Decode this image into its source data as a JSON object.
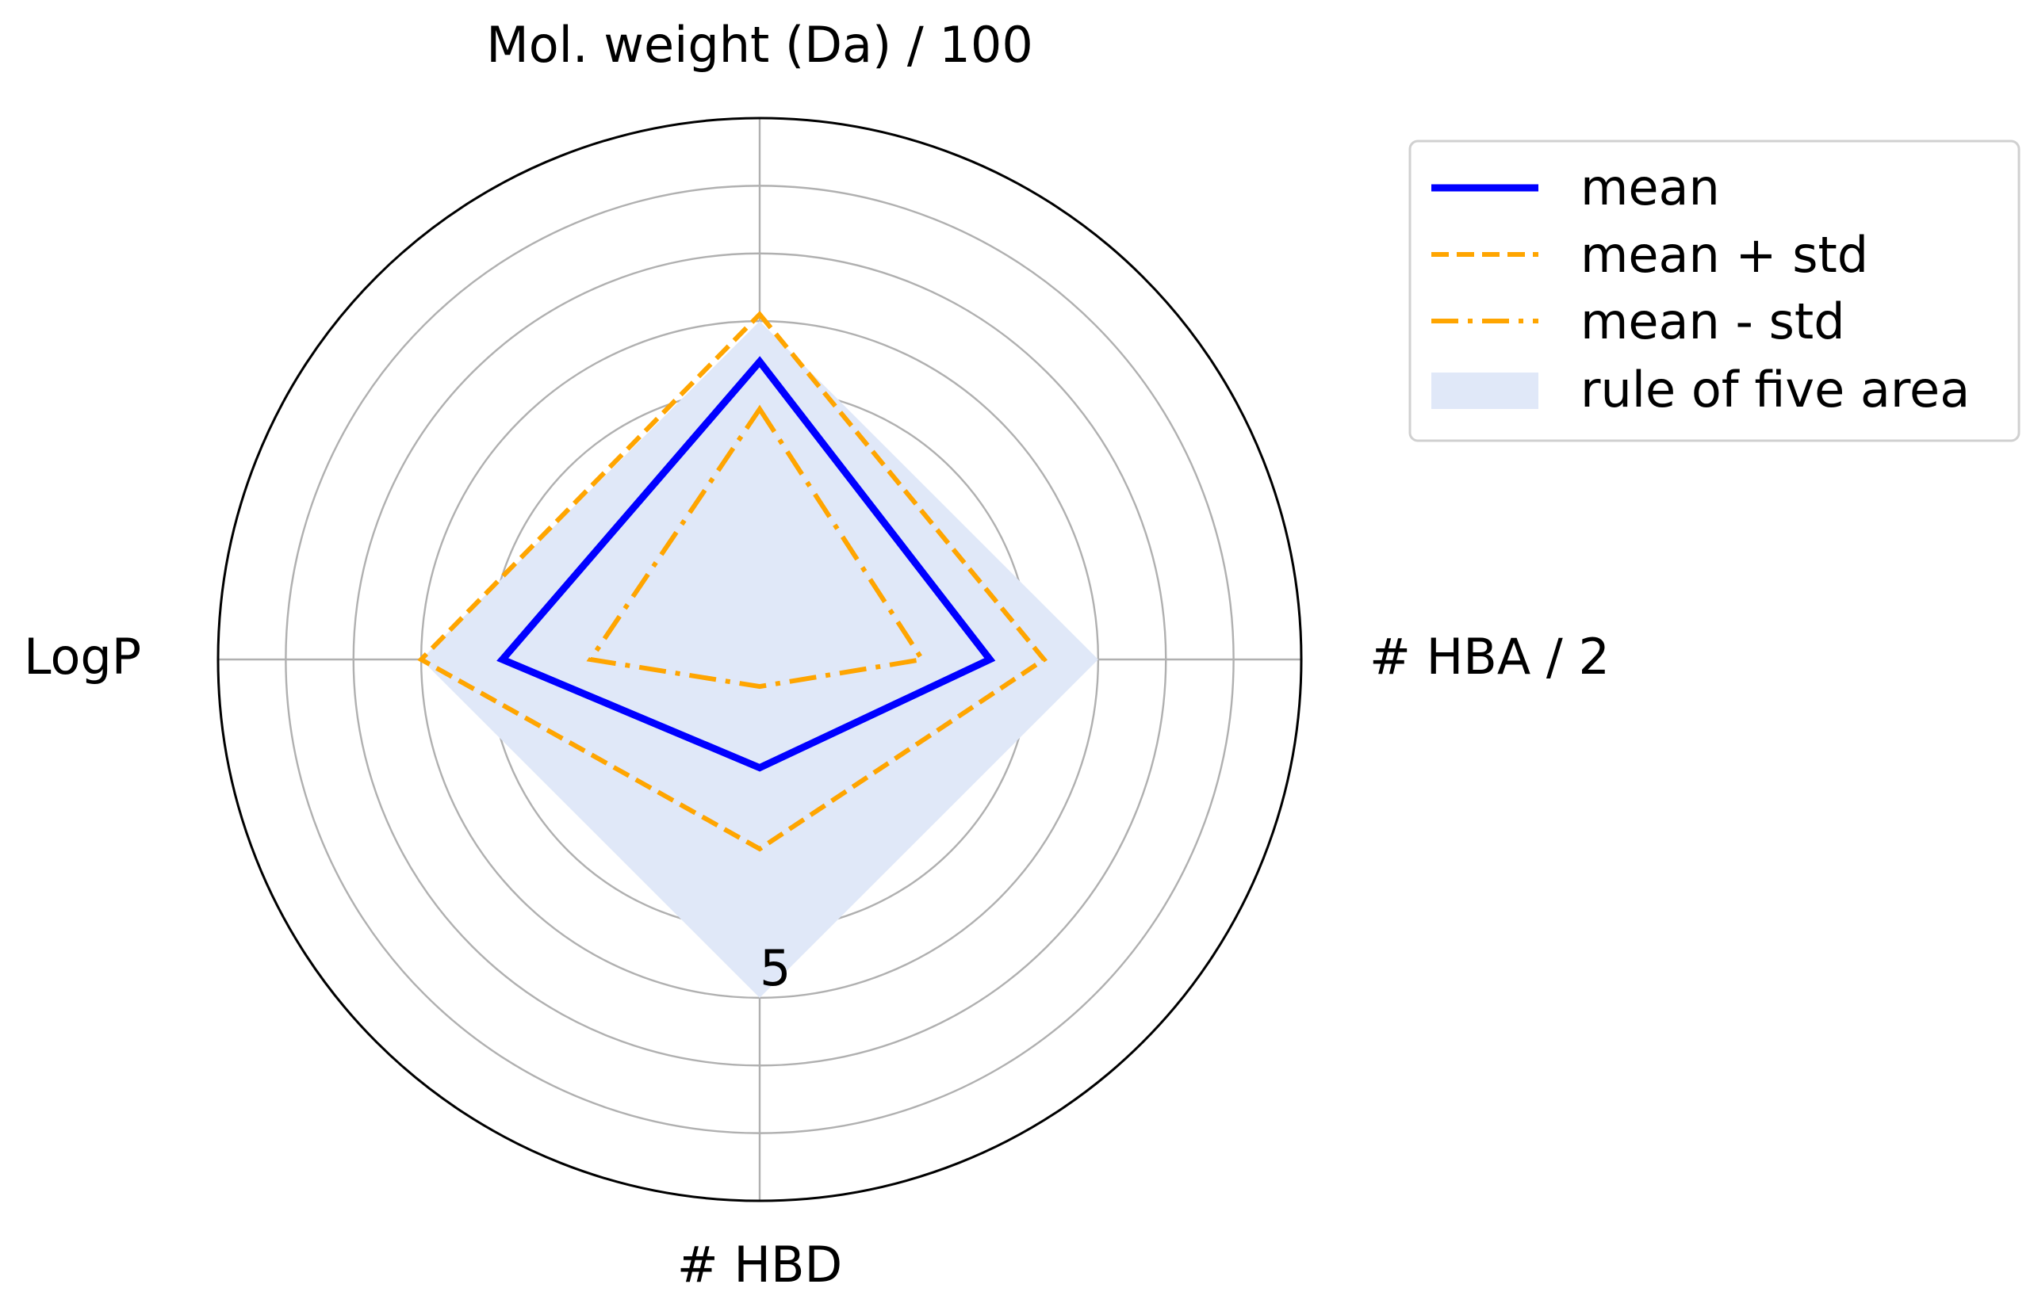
{
  "chart_data": {
    "type": "radar",
    "axes": [
      "Mol. weight (Da) / 100",
      "# HBA / 2",
      "# HBD",
      "LogP"
    ],
    "rmax": 8,
    "ring_values": [
      1,
      2,
      3,
      4,
      5,
      6,
      7,
      8
    ],
    "radial_tick_labels": [
      {
        "label": "5",
        "value": 5
      }
    ],
    "grid": true,
    "legend": {
      "placement": "top-right, outside plot",
      "entries": [
        "mean",
        "mean + std",
        "mean - std",
        "rule of five area"
      ]
    },
    "series": [
      {
        "name": "mean",
        "values": [
          4.4,
          3.4,
          1.6,
          3.8
        ],
        "color": "#0000ff",
        "style": "solid"
      },
      {
        "name": "mean + std",
        "values": [
          5.1,
          4.2,
          2.8,
          5.0
        ],
        "color": "#ffa500",
        "style": "dashed"
      },
      {
        "name": "mean - std",
        "values": [
          3.7,
          2.4,
          0.4,
          2.5
        ],
        "color": "#ffa500",
        "style": "dashdot"
      },
      {
        "name": "rule of five area",
        "values": [
          5,
          5,
          5,
          5
        ],
        "color": "#e0e8f8",
        "style": "filled"
      }
    ]
  }
}
